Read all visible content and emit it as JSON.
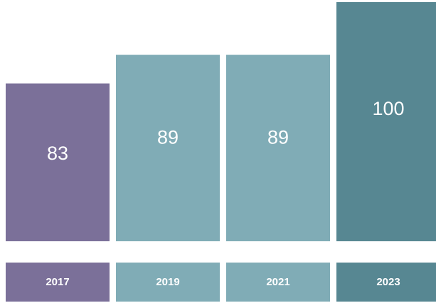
{
  "chart_data": {
    "type": "bar",
    "categories": [
      "2017",
      "2019",
      "2021",
      "2023"
    ],
    "values": [
      83,
      89,
      89,
      100
    ],
    "colors": [
      "#7b7099",
      "#80acb6",
      "#80acb6",
      "#578792"
    ],
    "ylim": [
      50,
      100
    ]
  }
}
